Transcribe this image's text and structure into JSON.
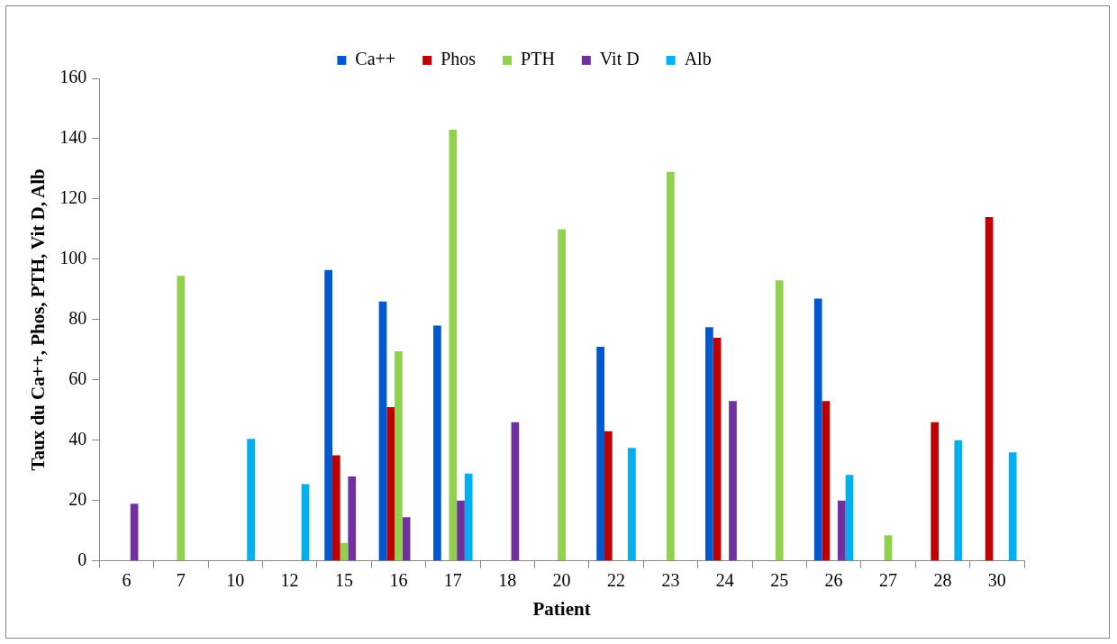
{
  "chart_data": {
    "type": "bar",
    "xlabel": "Patient",
    "ylabel": "Taux du Ca++, Phos, PTH, Vit D, Alb",
    "categories": [
      "6",
      "7",
      "10",
      "12",
      "15",
      "16",
      "17",
      "18",
      "20",
      "22",
      "23",
      "24",
      "25",
      "26",
      "27",
      "28",
      "30"
    ],
    "series": [
      {
        "name": "Ca++",
        "color": "#0058d0",
        "values": [
          null,
          null,
          null,
          null,
          96.5,
          86,
          78,
          null,
          null,
          71,
          null,
          77.5,
          null,
          87,
          null,
          null,
          null
        ]
      },
      {
        "name": "Phos",
        "color": "#c00000",
        "values": [
          null,
          null,
          null,
          null,
          35,
          51,
          null,
          null,
          null,
          43,
          null,
          74,
          null,
          53,
          null,
          46,
          114
        ]
      },
      {
        "name": "PTH",
        "color": "#92d050",
        "values": [
          null,
          94.5,
          null,
          null,
          6,
          69.5,
          143,
          null,
          110,
          null,
          129,
          null,
          93,
          null,
          8.5,
          null,
          null
        ]
      },
      {
        "name": "Vit D",
        "color": "#7030a0",
        "values": [
          19,
          null,
          null,
          null,
          28,
          14.5,
          20,
          46,
          null,
          null,
          null,
          53,
          null,
          20,
          null,
          null,
          null
        ]
      },
      {
        "name": "Alb",
        "color": "#00b0f0",
        "values": [
          null,
          null,
          40.5,
          25.5,
          null,
          null,
          29,
          null,
          null,
          37.5,
          null,
          null,
          null,
          28.5,
          null,
          40,
          36
        ]
      }
    ],
    "ylim": [
      0,
      160
    ],
    "yticks": [
      0,
      20,
      40,
      60,
      80,
      100,
      120,
      140,
      160
    ],
    "grid": false,
    "legend": "top"
  }
}
